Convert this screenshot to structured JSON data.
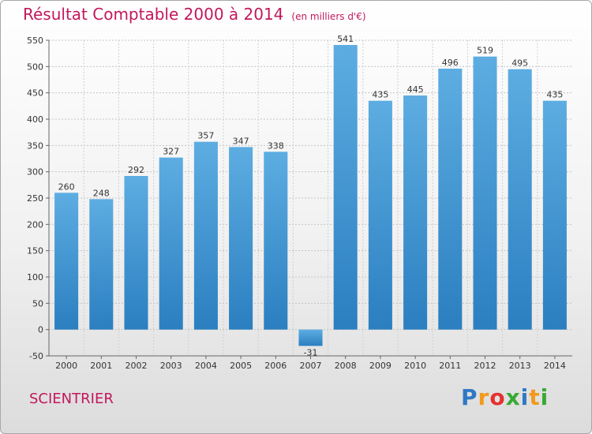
{
  "header": {
    "title": "Résultat Comptable 2000 à 2014",
    "unit": "(en milliers d'€)"
  },
  "footer": {
    "commune": "SCIENTRIER",
    "logo_letters": [
      "P",
      "r",
      "o",
      "x",
      "i",
      "t",
      "i"
    ],
    "logo_colors": [
      "#2f78c4",
      "#f29a1c",
      "#e4312f",
      "#3aa935",
      "#2f78c4",
      "#f29a1c",
      "#3aa935"
    ]
  },
  "colors": {
    "bar_top": "#5dade2",
    "bar_bottom": "#2b7fc0",
    "title": "#c2185b"
  },
  "chart_data": {
    "type": "bar",
    "categories": [
      "2000",
      "2001",
      "2002",
      "2003",
      "2004",
      "2005",
      "2006",
      "2007",
      "2008",
      "2009",
      "2010",
      "2011",
      "2012",
      "2013",
      "2014"
    ],
    "values": [
      260,
      248,
      292,
      327,
      357,
      347,
      338,
      -31,
      541,
      435,
      445,
      496,
      519,
      495,
      435
    ],
    "ylim": [
      -50,
      550
    ],
    "yticks": [
      -50,
      0,
      50,
      100,
      150,
      200,
      250,
      300,
      350,
      400,
      450,
      500,
      550
    ],
    "grid": true
  }
}
